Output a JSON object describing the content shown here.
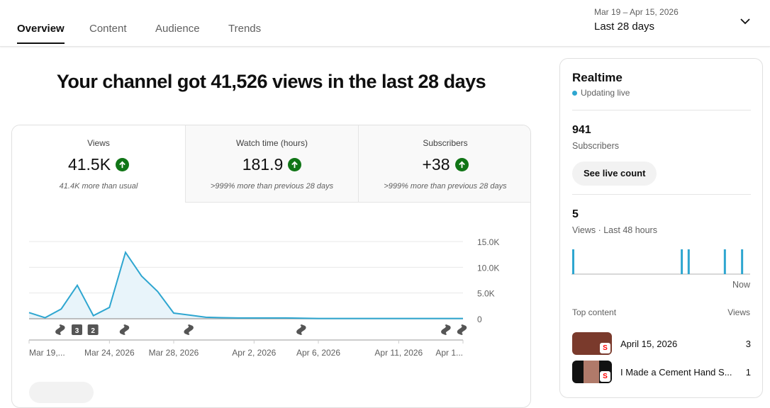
{
  "tabs": [
    {
      "label": "Overview"
    },
    {
      "label": "Content"
    },
    {
      "label": "Audience"
    },
    {
      "label": "Trends"
    }
  ],
  "date_range": {
    "dates": "Mar 19 – Apr 15, 2026",
    "label": "Last 28 days"
  },
  "headline": "Your channel got 41,526 views in the last 28 days",
  "metrics": [
    {
      "label": "Views",
      "value": "41.5K",
      "comparison": "41.4K more than usual"
    },
    {
      "label": "Watch time (hours)",
      "value": "181.9",
      "comparison": ">999% more than previous 28 days"
    },
    {
      "label": "Subscribers",
      "value": "+38",
      "comparison": ">999% more than previous 28 days"
    }
  ],
  "chart_data": {
    "type": "area",
    "title": "Views",
    "x_start": "Mar 19, 2026",
    "x_end": "Apr 15, 2026",
    "values": [
      1200,
      200,
      1900,
      6500,
      600,
      2200,
      12900,
      8300,
      5300,
      1100,
      700,
      300,
      200,
      150,
      150,
      150,
      150,
      100,
      50,
      50,
      50,
      50,
      50,
      50,
      50,
      50,
      50,
      50
    ],
    "ylim": [
      0,
      15000
    ],
    "y_ticks": [
      "15.0K",
      "10.0K",
      "5.0K",
      "0"
    ],
    "x_ticks": [
      {
        "day": 0,
        "label": "Mar 19,..."
      },
      {
        "day": 5,
        "label": "Mar 24, 2026"
      },
      {
        "day": 9,
        "label": "Mar 28, 2026"
      },
      {
        "day": 14,
        "label": "Apr 2, 2026"
      },
      {
        "day": 18,
        "label": "Apr 6, 2026"
      },
      {
        "day": 23,
        "label": "Apr 11, 2026"
      },
      {
        "day": 27,
        "label": "Apr 1..."
      }
    ],
    "markers": [
      {
        "day": 2,
        "type": "short"
      },
      {
        "day": 3,
        "type": "count",
        "label": "3"
      },
      {
        "day": 4,
        "type": "count",
        "label": "2"
      },
      {
        "day": 6,
        "type": "short"
      },
      {
        "day": 10,
        "type": "short"
      },
      {
        "day": 17,
        "type": "short"
      },
      {
        "day": 26,
        "type": "short"
      },
      {
        "day": 27,
        "type": "short"
      }
    ],
    "color": "#2ea6d0"
  },
  "realtime": {
    "title": "Realtime",
    "status": "Updating live",
    "subscribers": "941",
    "subscribers_label": "Subscribers",
    "button": "See live count",
    "views": "5",
    "views_label": "Views · Last 48 hours",
    "bars": [
      0,
      0.63,
      0.67,
      0.88,
      0.98
    ],
    "now_label": "Now",
    "top_content_label": "Top content",
    "views_col": "Views",
    "items": [
      {
        "title": "April 15, 2026",
        "views": "3",
        "color": "#7a3a2c"
      },
      {
        "title": "I Made a Cement Hand S...",
        "views": "1",
        "color": "#111"
      }
    ]
  }
}
